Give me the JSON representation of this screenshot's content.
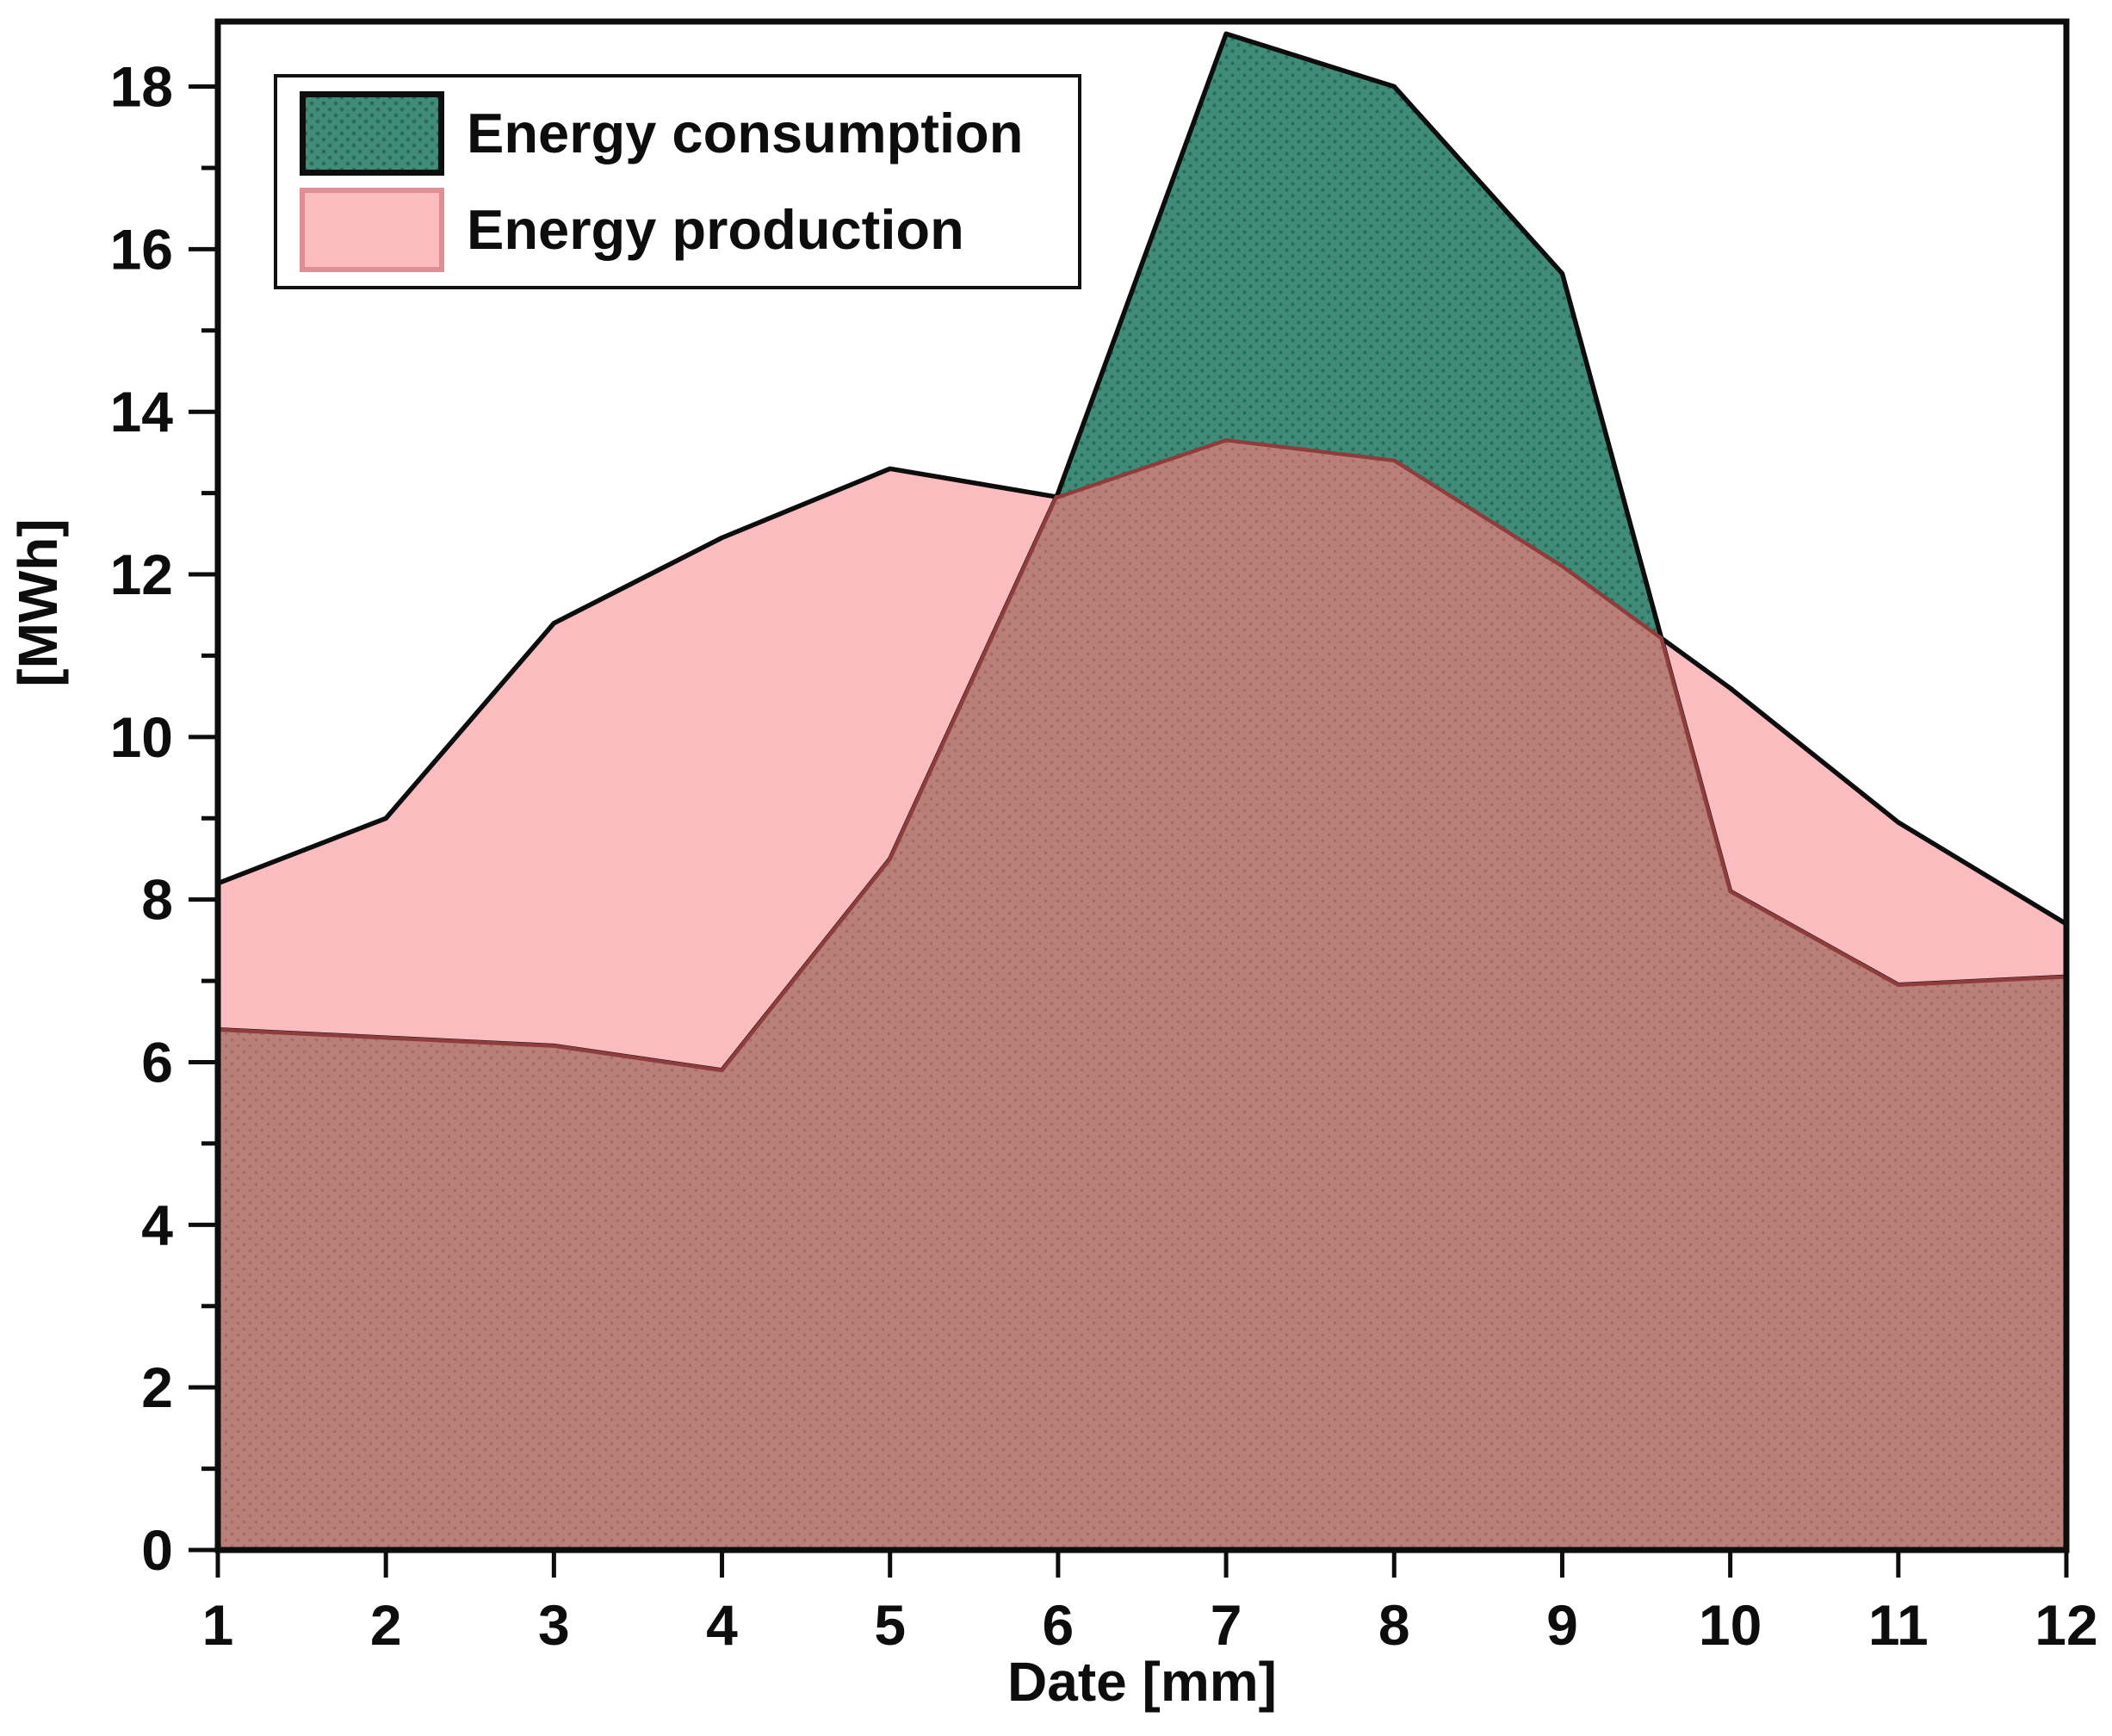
{
  "chart_data": {
    "type": "area",
    "x": [
      1,
      2,
      3,
      4,
      5,
      6,
      7,
      8,
      9,
      10,
      11,
      12
    ],
    "series": [
      {
        "name": "Energy consumption",
        "values": [
          6.4,
          6.3,
          6.2,
          5.9,
          8.5,
          13.0,
          18.65,
          18.0,
          15.7,
          8.1,
          6.95,
          7.05
        ],
        "fill": "#418C79",
        "pattern_dot": "#2B6B5A",
        "stroke": "#0D0D0D"
      },
      {
        "name": "Energy production",
        "values": [
          8.2,
          9.0,
          11.4,
          12.45,
          13.3,
          12.95,
          13.65,
          13.4,
          12.1,
          10.6,
          8.95,
          7.7
        ],
        "fill": "#FBBCC0",
        "pattern_dot": "#F3AFB4",
        "stroke": "#0D0D0D"
      }
    ],
    "overlap_fill": "#BA7F78",
    "overlap_dot": "#A76C68",
    "overlap_stroke": "#8F3D3C",
    "title": "",
    "xlabel": "Date [mm]",
    "ylabel": "[MWh]",
    "xlim": [
      1,
      12
    ],
    "ylim": [
      0,
      18.8
    ],
    "xticks": [
      "1",
      "2",
      "3",
      "4",
      "5",
      "6",
      "7",
      "8",
      "9",
      "10",
      "11",
      "12"
    ],
    "yticks_major": [
      "0",
      "2",
      "4",
      "6",
      "8",
      "10",
      "12",
      "14",
      "16",
      "18"
    ],
    "yticks_minor": [
      1,
      3,
      5,
      7,
      9,
      11,
      13,
      15,
      17
    ],
    "grid": "off",
    "legend_position": "top-left",
    "frame_color": "#0D0D0D",
    "text_color": "#0D0D0D"
  },
  "legend": {
    "items": [
      {
        "label": "Energy consumption"
      },
      {
        "label": "Energy production"
      }
    ]
  }
}
